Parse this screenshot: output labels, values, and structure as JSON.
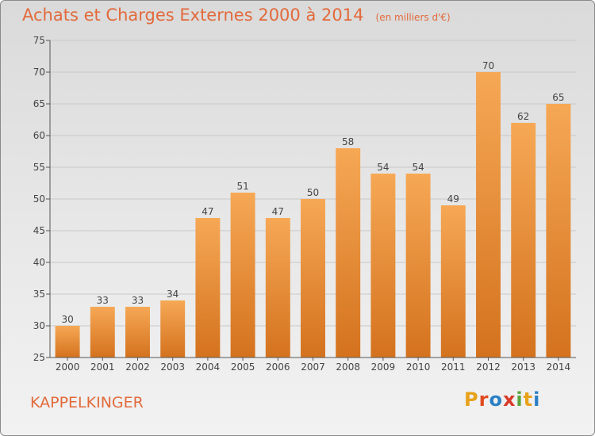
{
  "header": {
    "title": "Achats et Charges Externes 2000 à 2014",
    "subtitle": "(en milliers d'€)"
  },
  "footer": {
    "commune": "KAPPELKINGER",
    "logo": "Proxiti"
  },
  "colors": {
    "title": "#e26a3b",
    "bar_top": "#f6a855",
    "bar_bottom": "#d4721e",
    "grid": "#c8c8c8"
  },
  "chart_data": {
    "type": "bar",
    "title": "Achats et Charges Externes 2000 à 2014",
    "subtitle": "(en milliers d'€)",
    "xlabel": "",
    "ylabel": "",
    "categories": [
      "2000",
      "2001",
      "2002",
      "2003",
      "2004",
      "2005",
      "2006",
      "2007",
      "2008",
      "2009",
      "2010",
      "2011",
      "2012",
      "2013",
      "2014"
    ],
    "values": [
      30,
      33,
      33,
      34,
      47,
      51,
      47,
      50,
      58,
      54,
      54,
      49,
      70,
      62,
      65
    ],
    "ylim": [
      25,
      75
    ],
    "yticks": [
      25,
      30,
      35,
      40,
      45,
      50,
      55,
      60,
      65,
      70,
      75
    ],
    "grid": true,
    "data_labels": true
  }
}
